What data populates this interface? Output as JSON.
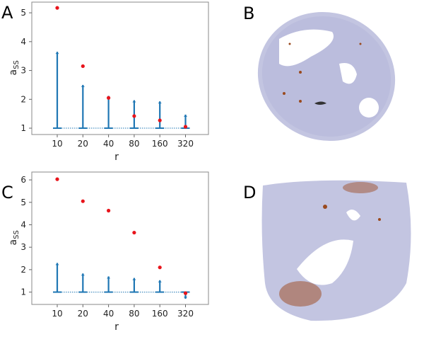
{
  "panels": {
    "a": "A",
    "b": "B",
    "c": "C",
    "d": "D"
  },
  "chart_data": [
    {
      "panel": "A",
      "type": "scatter",
      "xlabel": "r",
      "ylabel_main": "a",
      "ylabel_sub": "SS",
      "categories": [
        "10",
        "20",
        "40",
        "80",
        "160",
        "320"
      ],
      "yticks": [
        1,
        2,
        3,
        4,
        5
      ],
      "ylim": [
        0.78,
        5.37
      ],
      "baseline": 1,
      "series": [
        {
          "kind": "points",
          "color": "#e8141b",
          "values": [
            5.17,
            3.15,
            2.05,
            1.42,
            1.27,
            1.05
          ]
        },
        {
          "kind": "arrows",
          "color": "#1f77b4",
          "values": [
            3.65,
            2.5,
            2.12,
            1.97,
            1.93,
            1.47
          ]
        }
      ]
    },
    {
      "panel": "C",
      "type": "scatter",
      "xlabel": "r",
      "ylabel_main": "a",
      "ylabel_sub": "SS",
      "categories": [
        "10",
        "20",
        "40",
        "80",
        "160",
        "320"
      ],
      "yticks": [
        1,
        2,
        3,
        4,
        5,
        6
      ],
      "ylim": [
        0.45,
        6.35
      ],
      "baseline": 1,
      "series": [
        {
          "kind": "points",
          "color": "#e8141b",
          "values": [
            6.03,
            5.05,
            4.63,
            3.65,
            2.1,
            0.95
          ]
        },
        {
          "kind": "arrows",
          "color": "#1f77b4",
          "values": [
            2.3,
            1.83,
            1.7,
            1.63,
            1.53,
            0.7
          ]
        }
      ]
    }
  ],
  "images": {
    "b": {
      "description_colors": {
        "tissue": "#b9bcdc",
        "stain": "#9a4a1e"
      }
    },
    "d": {
      "description_colors": {
        "tissue": "#b9bcdc",
        "stain": "#9a4a1e"
      }
    }
  }
}
